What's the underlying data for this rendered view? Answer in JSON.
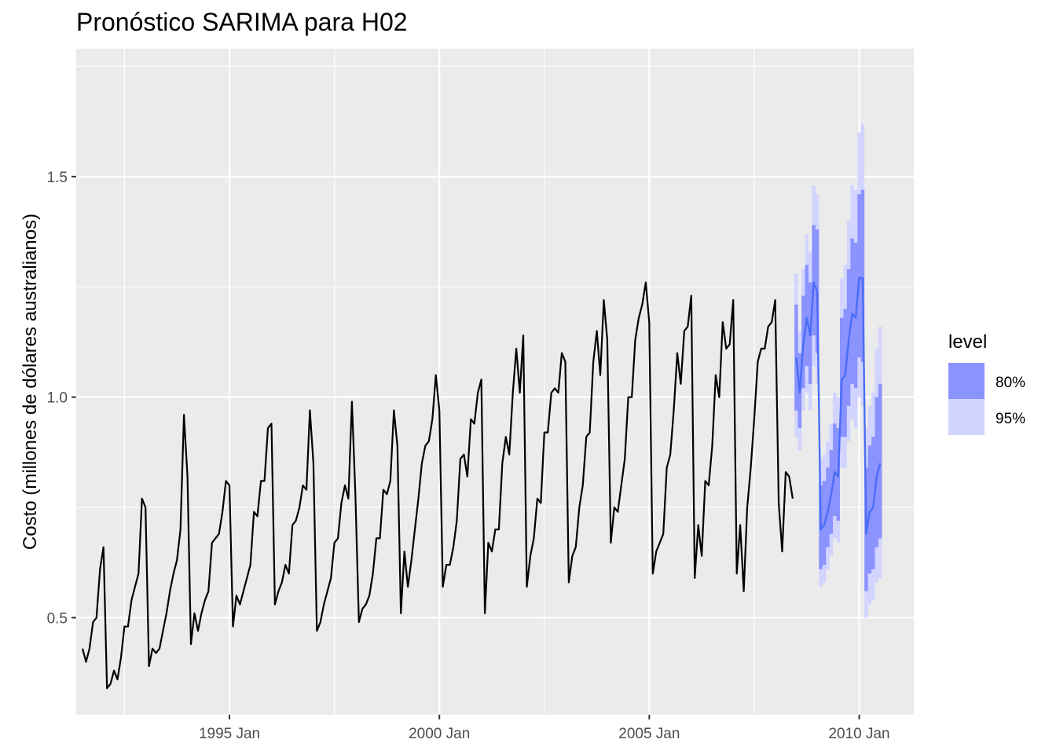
{
  "chart_data": {
    "type": "line",
    "title": "Pronóstico SARIMA para H02",
    "xlabel": "",
    "ylabel": "Costo (millones de dólares australianos)",
    "xlim": [
      1991.35,
      2011.3
    ],
    "ylim": [
      0.28,
      1.79
    ],
    "x_ticks": [
      {
        "value": 1995.0,
        "label": "1995 Jan"
      },
      {
        "value": 2000.0,
        "label": "2000 Jan"
      },
      {
        "value": 2005.0,
        "label": "2005 Jan"
      },
      {
        "value": 2010.0,
        "label": "2010 Jan"
      }
    ],
    "y_ticks": [
      {
        "value": 0.5,
        "label": "0.5"
      },
      {
        "value": 1.0,
        "label": "1.0"
      },
      {
        "value": 1.5,
        "label": "1.5"
      }
    ],
    "grid": true,
    "legend": {
      "title": "level",
      "position": "right",
      "entries": [
        {
          "label": "80%",
          "color": "#8b93ff"
        },
        {
          "label": "95%",
          "color": "#d2d4ff"
        }
      ]
    },
    "series": [
      {
        "name": "",
        "color": "#000000",
        "start": 1991.5,
        "step": 0.08333,
        "values": [
          0.43,
          0.4,
          0.43,
          0.49,
          0.5,
          0.61,
          0.66,
          0.34,
          0.35,
          0.38,
          0.36,
          0.41,
          0.48,
          0.48,
          0.54,
          0.57,
          0.6,
          0.77,
          0.75,
          0.39,
          0.43,
          0.42,
          0.43,
          0.47,
          0.51,
          0.56,
          0.6,
          0.63,
          0.7,
          0.96,
          0.82,
          0.44,
          0.51,
          0.47,
          0.51,
          0.54,
          0.56,
          0.67,
          0.68,
          0.69,
          0.74,
          0.81,
          0.8,
          0.48,
          0.55,
          0.53,
          0.56,
          0.59,
          0.62,
          0.74,
          0.73,
          0.81,
          0.81,
          0.93,
          0.94,
          0.53,
          0.56,
          0.58,
          0.62,
          0.6,
          0.71,
          0.72,
          0.75,
          0.8,
          0.79,
          0.97,
          0.85,
          0.47,
          0.49,
          0.53,
          0.56,
          0.59,
          0.67,
          0.68,
          0.76,
          0.8,
          0.77,
          0.99,
          0.78,
          0.49,
          0.52,
          0.53,
          0.55,
          0.6,
          0.68,
          0.68,
          0.79,
          0.78,
          0.81,
          0.97,
          0.89,
          0.51,
          0.65,
          0.57,
          0.63,
          0.7,
          0.77,
          0.85,
          0.89,
          0.9,
          0.95,
          1.05,
          0.97,
          0.57,
          0.62,
          0.62,
          0.66,
          0.72,
          0.86,
          0.87,
          0.82,
          0.95,
          0.94,
          1.01,
          1.04,
          0.51,
          0.67,
          0.65,
          0.7,
          0.7,
          0.85,
          0.91,
          0.87,
          1.01,
          1.11,
          1.01,
          1.14,
          0.57,
          0.64,
          0.68,
          0.77,
          0.76,
          0.92,
          0.92,
          1.01,
          1.02,
          1.01,
          1.1,
          1.08,
          0.58,
          0.64,
          0.66,
          0.75,
          0.8,
          0.91,
          0.92,
          1.08,
          1.15,
          1.05,
          1.22,
          1.13,
          0.67,
          0.75,
          0.74,
          0.8,
          0.86,
          1.0,
          1.0,
          1.13,
          1.18,
          1.21,
          1.26,
          1.17,
          0.6,
          0.65,
          0.67,
          0.69,
          0.84,
          0.87,
          0.97,
          1.1,
          1.03,
          1.15,
          1.16,
          1.23,
          0.59,
          0.71,
          0.64,
          0.81,
          0.8,
          0.89,
          1.05,
          1.0,
          1.17,
          1.11,
          1.12,
          1.22,
          0.6,
          0.71,
          0.56,
          0.75,
          0.84,
          0.95,
          1.08,
          1.11,
          1.11,
          1.16,
          1.17,
          1.22,
          0.76,
          0.65,
          0.83,
          0.82,
          0.77
        ]
      },
      {
        "name": "",
        "color": "#4a6df5",
        "start": 2008.5,
        "step": 0.08333,
        "values": [
          1.09,
          1.01,
          1.12,
          1.18,
          1.14,
          1.26,
          1.24,
          0.7,
          0.71,
          0.74,
          0.78,
          0.83,
          0.82,
          1.04,
          1.05,
          1.13,
          1.19,
          1.18,
          1.27,
          1.27,
          0.69,
          0.74,
          0.75,
          0.82,
          0.85
        ],
        "lo80": [
          0.97,
          0.93,
          1.02,
          1.07,
          1.03,
          1.14,
          1.1,
          0.61,
          0.62,
          0.66,
          0.69,
          0.73,
          0.72,
          0.91,
          0.91,
          0.98,
          1.03,
          1.02,
          1.09,
          1.08,
          0.56,
          0.6,
          0.61,
          0.66,
          0.68
        ],
        "hi80": [
          1.21,
          1.1,
          1.23,
          1.3,
          1.26,
          1.39,
          1.38,
          0.8,
          0.81,
          0.84,
          0.88,
          0.94,
          0.93,
          1.18,
          1.2,
          1.29,
          1.36,
          1.35,
          1.46,
          1.47,
          0.84,
          0.89,
          0.91,
          1.0,
          1.03
        ],
        "lo95": [
          0.91,
          0.88,
          0.97,
          1.01,
          0.97,
          1.07,
          1.03,
          0.57,
          0.58,
          0.61,
          0.64,
          0.68,
          0.67,
          0.84,
          0.84,
          0.9,
          0.95,
          0.93,
          1.0,
          0.98,
          0.5,
          0.53,
          0.54,
          0.58,
          0.59
        ],
        "hi95": [
          1.28,
          1.15,
          1.29,
          1.37,
          1.33,
          1.48,
          1.46,
          0.86,
          0.87,
          0.9,
          0.94,
          1.01,
          1.0,
          1.27,
          1.3,
          1.4,
          1.48,
          1.47,
          1.6,
          1.62,
          0.93,
          0.98,
          1.01,
          1.11,
          1.16
        ]
      }
    ]
  }
}
